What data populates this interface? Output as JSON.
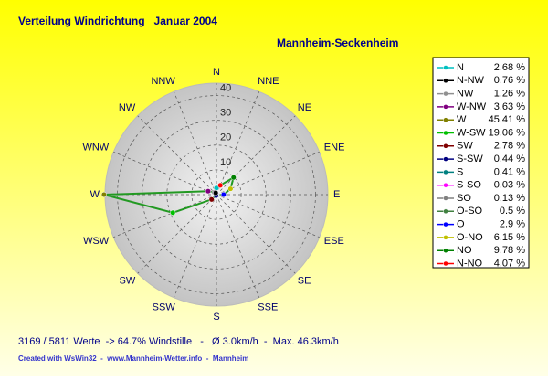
{
  "chart_data": {
    "type": "radar",
    "title": "Verteilung Windrichtung   Januar 2004",
    "subtitle": "Mannheim-Seckenheim",
    "categories": [
      "N",
      "NNE",
      "NE",
      "ENE",
      "E",
      "ESE",
      "SE",
      "SSE",
      "S",
      "SSW",
      "SW",
      "WSW",
      "W",
      "WNW",
      "NW",
      "NNW"
    ],
    "legend_names": [
      "N",
      "N-NO",
      "NO",
      "O-NO",
      "O",
      "O-SO",
      "SO",
      "S-SO",
      "S",
      "S-SW",
      "SW",
      "W-SW",
      "W",
      "W-NW",
      "NW",
      "N-NW"
    ],
    "values": [
      2.68,
      4.07,
      9.78,
      6.15,
      2.9,
      0.5,
      0.13,
      0.03,
      0.41,
      0.44,
      2.78,
      19.06,
      45.41,
      3.63,
      1.26,
      0.76
    ],
    "value_labels": [
      "2.68 %",
      "4.07 %",
      "9.78 %",
      "6.15 %",
      "2.9 %",
      "0.5 %",
      "0.13 %",
      "0.03 %",
      "0.41 %",
      "0.44 %",
      "2.78 %",
      "19.06 %",
      "45.41 %",
      "3.63 %",
      "1.26 %",
      "0.76 %"
    ],
    "colors": [
      "#00c0c0",
      "#ff0000",
      "#008000",
      "#c0c000",
      "#0000ff",
      "#408040",
      "#808080",
      "#ff00ff",
      "#008080",
      "#000080",
      "#800000",
      "#00c000",
      "#808000",
      "#800080",
      "#909090",
      "#000000"
    ],
    "line_color": "#229922",
    "rlim": [
      0,
      45
    ],
    "rticks": [
      10,
      20,
      30,
      40
    ],
    "grid": true,
    "footer": "3169 / 5811 Werte  -> 64.7% Windstille   -   Ø 3.0km/h  -  Max. 46.3km/h",
    "credit": "Created with WsWin32  -  www.Mannheim-Wetter.info  -  Mannheim"
  }
}
